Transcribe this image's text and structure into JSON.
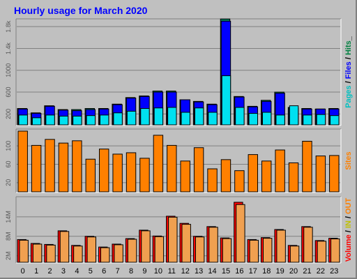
{
  "chart_data": {
    "type": "bar",
    "title": "Hourly usage for March 2020",
    "categories": [
      "0",
      "1",
      "2",
      "3",
      "4",
      "5",
      "6",
      "7",
      "8",
      "9",
      "10",
      "11",
      "12",
      "13",
      "14",
      "15",
      "16",
      "17",
      "18",
      "19",
      "20",
      "21",
      "22",
      "23"
    ],
    "panels": [
      {
        "id": "requests",
        "yticks": [
          "200",
          "600",
          "1000",
          "1.4k",
          "1.8k"
        ],
        "ytick_values": [
          200,
          600,
          1000,
          1400,
          1800
        ],
        "ylim": [
          0,
          1930
        ],
        "label_parts": [
          {
            "text": "Pages",
            "color": "#00c0c0"
          },
          {
            "text": " / ",
            "color": "#000000"
          },
          {
            "text": "Files",
            "color": "#0000ff"
          },
          {
            "text": " / ",
            "color": "#000000"
          },
          {
            "text": "Hits",
            "color": "#008040"
          },
          {
            "text": "_",
            "color": "#000000"
          }
        ],
        "series": [
          {
            "name": "Hits",
            "color": "#00805f",
            "values": [
              300,
              220,
              350,
              280,
              280,
              300,
              300,
              380,
              500,
              530,
              620,
              620,
              460,
              430,
              380,
              1940,
              520,
              340,
              450,
              600,
              320,
              300,
              290,
              300
            ]
          },
          {
            "name": "Files",
            "color": "#0000ff",
            "values": [
              290,
              210,
              340,
              270,
              260,
              280,
              290,
              370,
              490,
              520,
              600,
              600,
              460,
              420,
              370,
              1900,
              510,
              330,
              430,
              580,
              310,
              290,
              290,
              290
            ]
          },
          {
            "name": "Pages",
            "color": "#00e0f0",
            "values": [
              180,
              130,
              180,
              160,
              160,
              170,
              180,
              220,
              250,
              300,
              310,
              320,
              230,
              310,
              230,
              900,
              320,
              210,
              230,
              180,
              350,
              180,
              190,
              170
            ]
          }
        ]
      },
      {
        "id": "sites",
        "yticks": [
          "20",
          "60",
          "100"
        ],
        "ytick_values": [
          20,
          60,
          100
        ],
        "ylim": [
          0,
          135
        ],
        "label_parts": [
          {
            "text": "Sites",
            "color": "#ff8000"
          }
        ],
        "series": [
          {
            "name": "Sites",
            "color": "#ff8000",
            "values": [
              132,
              101,
              114,
              106,
              111,
              71,
              93,
              82,
              85,
              73,
              123,
              101,
              67,
              96,
              50,
              70,
              46,
              81,
              67,
              91,
              63,
              110,
              78,
              79
            ]
          }
        ]
      },
      {
        "id": "volume",
        "yticks": [
          "2M",
          "8M",
          "14M"
        ],
        "ytick_values": [
          2000000,
          8000000,
          14000000
        ],
        "ylim": [
          0,
          20000000
        ],
        "label_parts": [
          {
            "text": "Volume",
            "color": "#ff0000"
          },
          {
            "text": " / ",
            "color": "#000000"
          },
          {
            "text": "IN",
            "color": "#c0c000"
          },
          {
            "text": " / ",
            "color": "#000000"
          },
          {
            "text": "OUT",
            "color": "#ff8000"
          }
        ],
        "series": [
          {
            "name": "Volume",
            "color": "#ff0000",
            "values": [
              7000000,
              5800000,
              5500000,
              9700000,
              5200000,
              8000000,
              4700000,
              5600000,
              7300000,
              9900000,
              8100000,
              14200000,
              12000000,
              8000000,
              11000000,
              7500000,
              18500000,
              7000000,
              7600000,
              10100000,
              5200000,
              11000000,
              6700000,
              7400000
            ]
          },
          {
            "name": "OUT",
            "color": "#f0a050",
            "values": [
              6800000,
              5600000,
              5300000,
              9500000,
              5000000,
              7800000,
              4500000,
              5400000,
              7100000,
              9700000,
              7900000,
              13900000,
              11700000,
              7800000,
              10800000,
              7300000,
              17800000,
              6800000,
              7400000,
              9900000,
              5000000,
              10800000,
              6500000,
              7200000
            ]
          }
        ]
      }
    ],
    "grid": true,
    "legend": "right"
  }
}
